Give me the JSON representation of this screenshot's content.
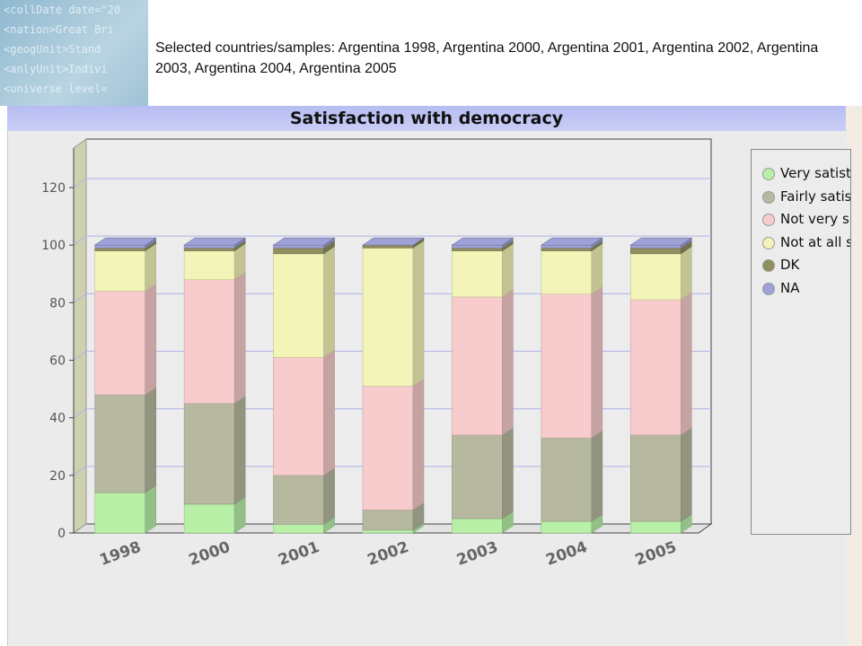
{
  "caption": "Selected countries/samples: Argentina 1998, Argentina 2000, Argentina 2001, Argentina 2002, Argentina 2003, Argentina 2004, Argentina 2005",
  "logo_lines": [
    "<collDate date=\"20",
    "<nation>Great Bri",
    "<geogUnit>Stand",
    "<anlyUnit>Indivi",
    "<universe level="
  ],
  "colors": {
    "Very satisfied": "#b8f0a8",
    "Fairly satisfied": "#b6b9a0",
    "Not very satisfied": "#f8cccc",
    "Not at all satisfied": "#f3f4b8",
    "DK": "#8f8f60",
    "NA": "#9ea2d8"
  },
  "legend_labels": [
    "Very satist",
    "Fairly satis",
    "Not very s",
    "Not at all s",
    "DK",
    "NA"
  ],
  "chart_data": {
    "type": "bar",
    "stacked": true,
    "title": "Satisfaction with democracy",
    "categories": [
      "1998",
      "2000",
      "2001",
      "2002",
      "2003",
      "2004",
      "2005"
    ],
    "yticks": [
      0,
      20,
      40,
      60,
      80,
      100,
      120
    ],
    "ylim": [
      0,
      133
    ],
    "legend_position": "right",
    "series": [
      {
        "name": "Very satisfied",
        "values": [
          14,
          10,
          3,
          1,
          5,
          4,
          4
        ]
      },
      {
        "name": "Fairly satisfied",
        "values": [
          34,
          35,
          17,
          7,
          29,
          29,
          30
        ]
      },
      {
        "name": "Not very satisfied",
        "values": [
          36,
          43,
          41,
          43,
          48,
          50,
          47
        ]
      },
      {
        "name": "Not at all satisfied",
        "values": [
          14,
          10,
          36,
          48,
          16,
          15,
          16
        ]
      },
      {
        "name": "DK",
        "values": [
          1,
          1,
          2,
          1,
          1,
          1,
          2
        ]
      },
      {
        "name": "NA",
        "values": [
          1,
          1,
          1,
          0,
          1,
          1,
          1
        ]
      }
    ]
  }
}
